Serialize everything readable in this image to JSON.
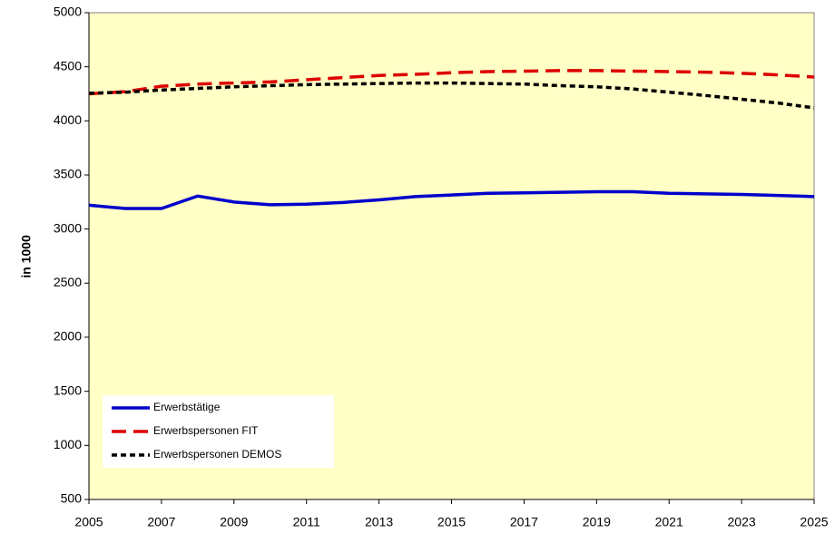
{
  "chart_data": {
    "type": "line",
    "y_label": "in 1000",
    "x": [
      2005,
      2006,
      2007,
      2008,
      2009,
      2010,
      2011,
      2012,
      2013,
      2014,
      2015,
      2016,
      2017,
      2018,
      2019,
      2020,
      2021,
      2022,
      2023,
      2024,
      2025
    ],
    "series": [
      {
        "name": "Erwerbstätige",
        "color": "#0000cc",
        "dash": "solid",
        "values": [
          3220,
          3190,
          3190,
          3305,
          3250,
          3225,
          3230,
          3245,
          3270,
          3300,
          3315,
          3330,
          3335,
          3340,
          3345,
          3345,
          3330,
          3325,
          3320,
          3310,
          3300
        ]
      },
      {
        "name": "Erwerbspersonen FIT",
        "color": "#dd0000",
        "dash": "long",
        "values": [
          4250,
          4270,
          4320,
          4340,
          4350,
          4360,
          4380,
          4400,
          4420,
          4430,
          4445,
          4455,
          4460,
          4465,
          4465,
          4460,
          4455,
          4450,
          4440,
          4425,
          4405
        ]
      },
      {
        "name": "Erwerbspersonen DEMOS",
        "color": "#000000",
        "dash": "short",
        "values": [
          4255,
          4265,
          4285,
          4300,
          4315,
          4325,
          4335,
          4340,
          4345,
          4350,
          4350,
          4345,
          4340,
          4325,
          4315,
          4295,
          4265,
          4235,
          4200,
          4165,
          4120
        ]
      }
    ],
    "xlim": [
      2005,
      2025
    ],
    "xticks": [
      2005,
      2007,
      2009,
      2011,
      2013,
      2015,
      2017,
      2019,
      2021,
      2023,
      2025
    ],
    "ylim": [
      500,
      5000
    ],
    "yticks": [
      500,
      1000,
      1500,
      2000,
      2500,
      3000,
      3500,
      4000,
      4500,
      5000
    ],
    "grid": false,
    "legend": "lower left",
    "background": "#ffffc6"
  }
}
